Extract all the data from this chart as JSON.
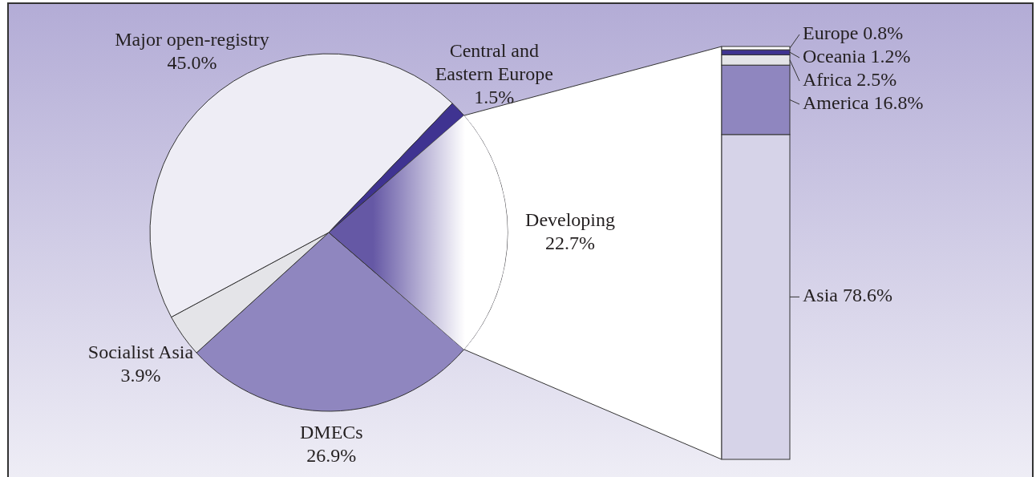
{
  "chart_data": [
    {
      "type": "pie",
      "categories": [
        "DMECs",
        "Socialist Asia",
        "Major open-registry",
        "Central and Eastern Europe",
        "Developing"
      ],
      "values": [
        26.9,
        3.9,
        45.0,
        1.5,
        22.7
      ],
      "colors": [
        "#8f86bf",
        "#e4e4e8",
        "#eeedf5",
        "#3f3391",
        "#6558a5"
      ],
      "value_labels": [
        "26.9%",
        "3.9%",
        "45.0%",
        "1.5%",
        "22.7%"
      ]
    },
    {
      "type": "bar",
      "stacked": true,
      "categories": [
        null
      ],
      "tick_labels": false,
      "series": [
        {
          "color": "#d6d3e8",
          "values": [
            78.6
          ],
          "value_labels": [
            "Asia 78.6%"
          ]
        },
        {
          "color": "#8f86bf",
          "values": [
            16.8
          ],
          "value_labels": [
            "America 16.8%"
          ]
        },
        {
          "color": "#e4e4e8",
          "values": [
            2.5
          ],
          "value_labels": [
            "Africa 2.5%"
          ]
        },
        {
          "color": "#3f3391",
          "values": [
            1.2
          ],
          "value_labels": [
            "Oceania 1.2%"
          ]
        },
        {
          "color": "#ffffff",
          "values": [
            0.8
          ],
          "value_labels": [
            "Europe 0.8%"
          ]
        }
      ]
    }
  ]
}
